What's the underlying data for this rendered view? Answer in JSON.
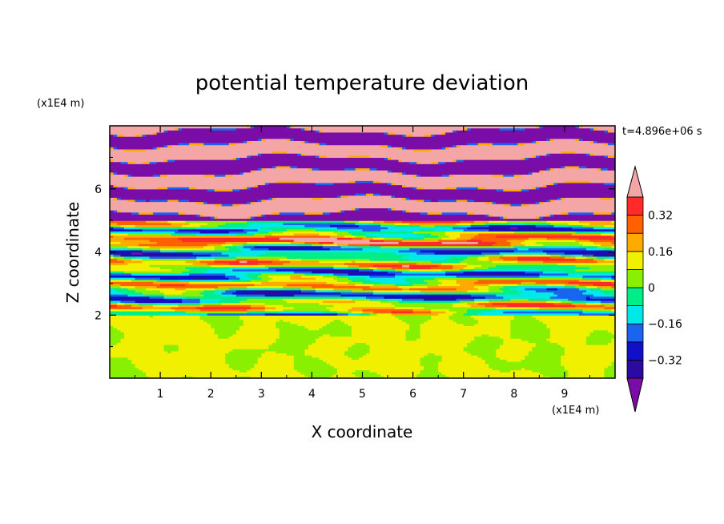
{
  "chart_data": {
    "type": "heatmap",
    "title": "potential temperature deviation",
    "xlabel": "X coordinate",
    "ylabel": "Z coordinate",
    "x_unit": "(x1E4 m)",
    "y_unit": "(x1E4 m)",
    "time_label": "t=4.896e+06 s",
    "xlim": [
      0,
      10
    ],
    "ylim": [
      0,
      8
    ],
    "x_ticks": [
      "1",
      "2",
      "3",
      "4",
      "5",
      "6",
      "7",
      "8",
      "9"
    ],
    "y_ticks": [
      "2",
      "4",
      "6"
    ],
    "colorbar": {
      "levels": [
        -0.4,
        -0.32,
        -0.24,
        -0.16,
        -0.08,
        0,
        0.08,
        0.16,
        0.24,
        0.32,
        0.4
      ],
      "labels": [
        "-0.32",
        "-0.16",
        "0",
        "0.16",
        "0.32"
      ],
      "colors": [
        "#7a0ca8",
        "#2a0aa0",
        "#1010c8",
        "#1a64f0",
        "#00e8e8",
        "#00ee88",
        "#88f000",
        "#f0f000",
        "#ffaa00",
        "#ff6000",
        "#ff2a2a",
        "#f4a6a6"
      ],
      "extend": "both"
    },
    "layers": [
      {
        "z_range": [
          0,
          2
        ],
        "description_value": 0.02,
        "color": "#88f000"
      },
      {
        "z_range": [
          2,
          5
        ],
        "mixed_values": [
          -0.3,
          -0.1,
          0.05,
          0.15,
          0.3
        ]
      },
      {
        "z_range": [
          5,
          8
        ],
        "mixed_values": [
          -0.45,
          0.45
        ]
      }
    ]
  }
}
